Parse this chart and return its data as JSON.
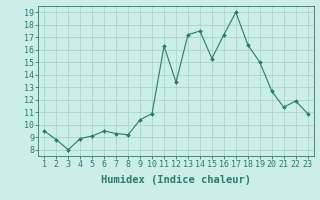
{
  "x": [
    1,
    2,
    3,
    4,
    5,
    6,
    7,
    8,
    9,
    10,
    11,
    12,
    13,
    14,
    15,
    16,
    17,
    18,
    19,
    20,
    21,
    22,
    23
  ],
  "y": [
    9.5,
    8.8,
    8.0,
    8.9,
    9.1,
    9.5,
    9.3,
    9.2,
    10.4,
    10.9,
    16.3,
    13.4,
    17.2,
    17.5,
    15.3,
    17.2,
    19.0,
    16.4,
    15.0,
    12.7,
    11.4,
    11.9,
    10.9
  ],
  "line_color": "#2a7a6e",
  "marker": "D",
  "marker_size": 2.0,
  "bg_color": "#cceee8",
  "grid_color": "#aad4ce",
  "xlabel": "Humidex (Indice chaleur)",
  "xlabel_fontsize": 7.5,
  "tick_fontsize": 6.0,
  "xlim": [
    0.5,
    23.5
  ],
  "ylim": [
    7.5,
    19.5
  ],
  "yticks": [
    8,
    9,
    10,
    11,
    12,
    13,
    14,
    15,
    16,
    17,
    18,
    19
  ]
}
